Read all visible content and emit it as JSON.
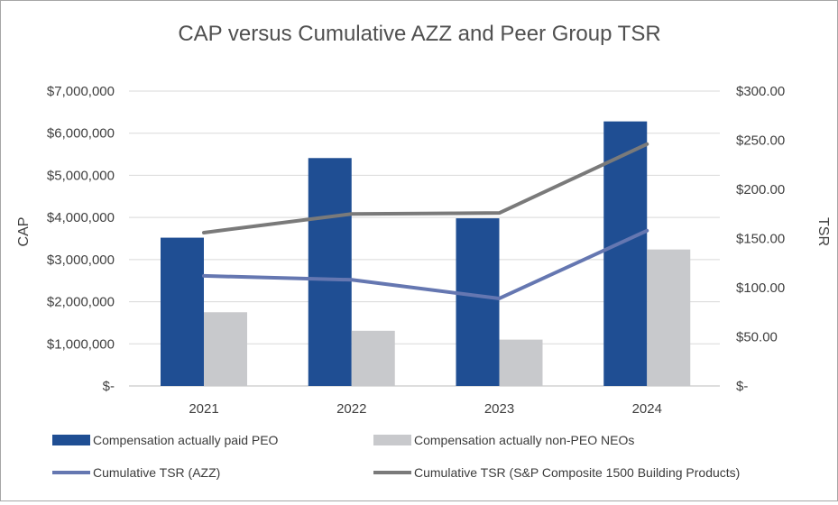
{
  "chart_data": {
    "type": "bar",
    "title": "CAP versus Cumulative AZZ and Peer Group TSR",
    "categories": [
      "2021",
      "2022",
      "2023",
      "2024"
    ],
    "series": [
      {
        "name": "Compensation actually paid PEO",
        "kind": "bar",
        "axis": "left",
        "color": "#1f4e93",
        "values": [
          3520000,
          5410000,
          3980000,
          6280000
        ]
      },
      {
        "name": "Compensation actually non-PEO NEOs",
        "kind": "bar",
        "axis": "left",
        "color": "#c8c9cc",
        "values": [
          1750000,
          1310000,
          1100000,
          3240000
        ]
      },
      {
        "name": "Cumulative TSR (AZZ)",
        "kind": "line",
        "axis": "right",
        "color": "#6577b1",
        "values": [
          112,
          108,
          89,
          158
        ]
      },
      {
        "name": "Cumulative TSR (S&P Composite 1500 Building Products)",
        "kind": "line",
        "axis": "right",
        "color": "#7a7a7a",
        "values": [
          156,
          175,
          176,
          246
        ]
      }
    ],
    "ylabel": "CAP",
    "y2label": "TSR",
    "ylim": [
      0,
      7000000
    ],
    "y2lim": [
      0,
      300
    ],
    "yticks": [
      "$-",
      "$1,000,000",
      "$2,000,000",
      "$3,000,000",
      "$4,000,000",
      "$5,000,000",
      "$6,000,000",
      "$7,000,000"
    ],
    "y2ticks": [
      "$-",
      "$50.00",
      "$100.00",
      "$150.00",
      "$200.00",
      "$250.00",
      "$300.00"
    ],
    "grid": true,
    "legend_position": "bottom"
  }
}
